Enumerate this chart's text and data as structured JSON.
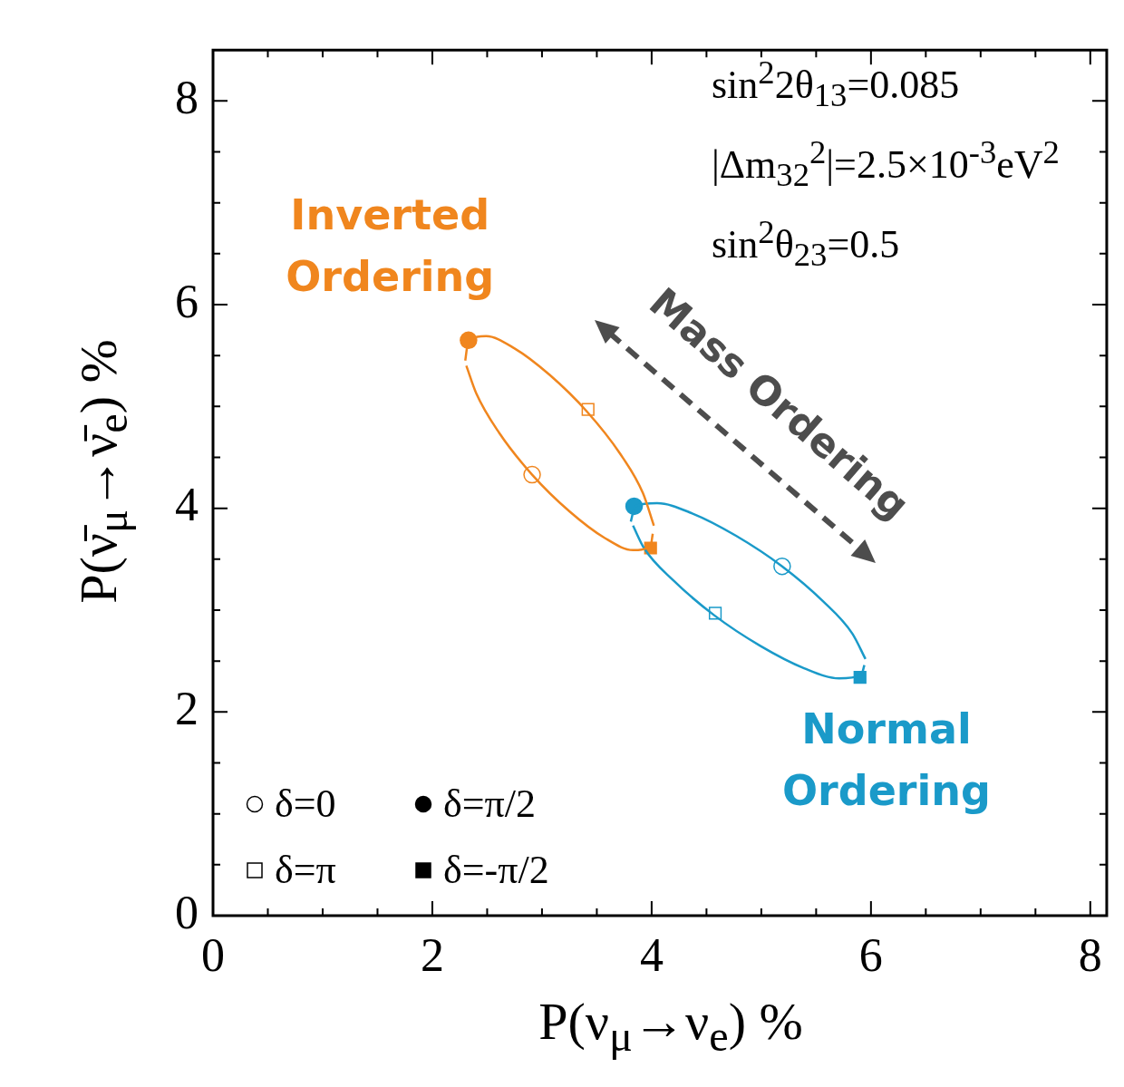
{
  "chart_data": {
    "type": "scatter",
    "xlabel": "P(ν$_{μ}$→ν$_{e}$) %",
    "ylabel": "P(ν̄$_{μ}$→ν̄$_{e}$) %",
    "xlim": [
      0,
      8.15
    ],
    "ylim": [
      0,
      8.5
    ],
    "xticks": [
      0,
      {
        "value": 0.5,
        "label": null
      },
      {
        "value": 1,
        "label": null
      },
      {
        "value": 1.5,
        "label": null
      },
      2,
      {
        "value": 2.5,
        "label": null
      },
      {
        "value": 3,
        "label": null
      },
      {
        "value": 3.5,
        "label": null
      },
      4,
      {
        "value": 4.5,
        "label": null
      },
      {
        "value": 5,
        "label": null
      },
      {
        "value": 5.5,
        "label": null
      },
      6,
      {
        "value": 6.5,
        "label": null
      },
      {
        "value": 7,
        "label": null
      },
      {
        "value": 7.5,
        "label": null
      },
      8
    ],
    "yticks": [
      0,
      {
        "value": 0.5,
        "label": null
      },
      {
        "value": 1,
        "label": null
      },
      {
        "value": 1.5,
        "label": null
      },
      2,
      {
        "value": 2.5,
        "label": null
      },
      {
        "value": 3,
        "label": null
      },
      {
        "value": 3.5,
        "label": null
      },
      4,
      {
        "value": 4.5,
        "label": null
      },
      {
        "value": 5,
        "label": null
      },
      {
        "value": 5.5,
        "label": null
      },
      6,
      {
        "value": 6.5,
        "label": null
      },
      {
        "value": 7,
        "label": null
      },
      {
        "value": 7.5,
        "label": null
      },
      8
    ],
    "grid": false,
    "annotations": [
      "sin$^{2}$2θ$_{13}$=0.085",
      "|Δm$_{32}$$^{2}$|=2.5×10$^{-3}$eV$^{2}$",
      "sin$^{2}$θ$_{23}$=0.5",
      "Mass Ordering",
      "δ=0",
      "δ=π/2",
      "δ=π",
      "δ=-π/2"
    ],
    "series": [
      {
        "name": "Inverted Ordering",
        "type": "line",
        "marker": "none",
        "color": "#f0861e",
        "x": [
          2.3,
          2.33,
          2.49,
          2.75,
          3.07,
          3.41,
          3.71,
          3.92,
          4.02
        ],
        "values": [
          5.45,
          5.65,
          5.69,
          5.57,
          5.31,
          4.95,
          4.54,
          4.15,
          3.83
        ]
      },
      {
        "type": "line",
        "marker": "none",
        "color": "#f0861e",
        "x": [
          2.31,
          2.4,
          2.61,
          2.91,
          3.25,
          3.57,
          3.83,
          3.99,
          4.01
        ],
        "values": [
          5.4,
          5.13,
          4.74,
          4.33,
          3.97,
          3.71,
          3.59,
          3.63,
          3.75
        ]
      },
      {
        "name": "Normal Ordering",
        "type": "line",
        "marker": "none",
        "color": "#1a9ac9",
        "x": [
          3.83,
          3.93,
          4.2,
          4.57,
          4.99,
          5.39,
          5.71,
          5.91,
          5.94
        ],
        "values": [
          3.83,
          3.61,
          3.29,
          2.95,
          2.65,
          2.43,
          2.33,
          2.36,
          2.46
        ]
      },
      {
        "type": "line",
        "marker": "none",
        "color": "#1a9ac9",
        "x": [
          3.81,
          3.85,
          4.05,
          4.37,
          4.77,
          5.19,
          5.56,
          5.83,
          5.95
        ],
        "values": [
          3.87,
          4.02,
          4.05,
          3.95,
          3.73,
          3.43,
          3.09,
          2.77,
          2.52
        ]
      },
      {
        "type": "scatter",
        "marker": "circle",
        "color": "#ffffff",
        "x": [
          2.91,
          5.19
        ],
        "values": [
          4.33,
          3.43
        ],
        "colors": [
          "#f0861e",
          "#1a9ac9"
        ]
      },
      {
        "type": "scatter",
        "marker": "circle",
        "color": "#000000",
        "x": [
          2.33,
          3.84
        ],
        "values": [
          5.65,
          4.02
        ],
        "colors": [
          "#f0861e",
          "#1a9ac9"
        ]
      },
      {
        "type": "scatter",
        "marker": "square",
        "color": "#ffffff",
        "x": [
          3.42,
          4.58
        ],
        "values": [
          4.97,
          2.97
        ],
        "colors": [
          "#f0861e",
          "#1a9ac9"
        ]
      },
      {
        "type": "scatter",
        "marker": "square",
        "color": "#000000",
        "x": [
          3.99,
          5.9
        ],
        "values": [
          3.61,
          2.34
        ],
        "colors": [
          "#f0861e",
          "#1a9ac9"
        ]
      }
    ]
  }
}
